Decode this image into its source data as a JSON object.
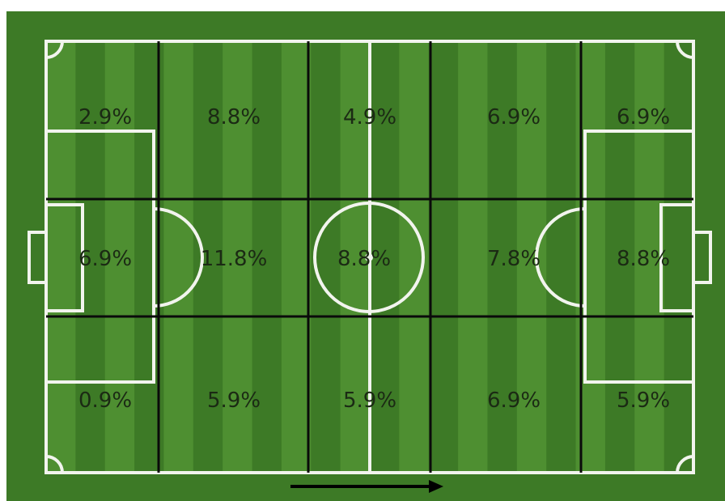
{
  "colors": {
    "grass_dark": "#3d7a26",
    "grass_light": "#4e8f31",
    "pitch_lines": "#f2f4ee",
    "grid_lines": "#0a0a0a",
    "label_text": "#1b2a14",
    "arrow": "#000000"
  },
  "grid": {
    "rows": 3,
    "columns": 5,
    "zones": [
      [
        "2.9%",
        "8.8%",
        "4.9%",
        "6.9%",
        "6.9%"
      ],
      [
        "6.9%",
        "11.8%",
        "8.8%",
        "7.8%",
        "8.8%"
      ],
      [
        "0.9%",
        "5.9%",
        "5.9%",
        "6.9%",
        "5.9%"
      ]
    ]
  },
  "direction_arrow": "right"
}
